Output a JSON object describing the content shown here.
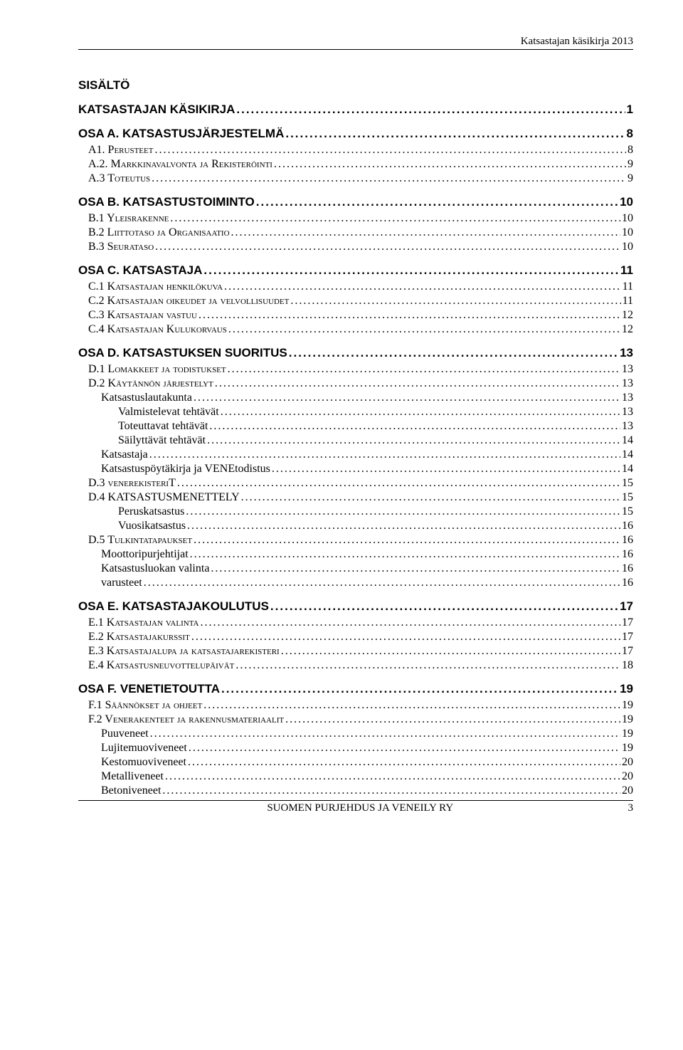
{
  "header": {
    "right_text": "Katsastajan käsikirja 2013"
  },
  "heading": "SISÄLTÖ",
  "toc": [
    {
      "level": "section",
      "label": "KATSASTAJAN KÄSIKIRJA",
      "page": "1"
    },
    {
      "level": "section",
      "label": "OSA A. KATSASTUSJÄRJESTELMÄ",
      "page": "8"
    },
    {
      "level": 1,
      "smallcaps": true,
      "label": "A1. Perusteet",
      "page": "8"
    },
    {
      "level": 1,
      "smallcaps": true,
      "label": "A.2. Markkinavalvonta ja Rekisteröinti",
      "page": "9"
    },
    {
      "level": 1,
      "smallcaps": true,
      "label": "A.3 Toteutus",
      "page": "9"
    },
    {
      "level": "section",
      "label": "OSA B. KATSASTUSTOIMINTO",
      "page": "10"
    },
    {
      "level": 1,
      "smallcaps": true,
      "label": "B.1 Yleisrakenne",
      "page": "10"
    },
    {
      "level": 1,
      "smallcaps": true,
      "label": "B.2 Liittotaso ja Organisaatio",
      "page": "10"
    },
    {
      "level": 1,
      "smallcaps": true,
      "label": "B.3 Seurataso",
      "page": "10"
    },
    {
      "level": "section",
      "label": "OSA C. KATSASTAJA",
      "page": "11"
    },
    {
      "level": 1,
      "smallcaps": true,
      "label": "C.1 Katsastajan henkilökuva",
      "page": "11"
    },
    {
      "level": 1,
      "smallcaps": true,
      "label": "C.2 Katsastajan oikeudet ja velvollisuudet",
      "page": "11"
    },
    {
      "level": 1,
      "smallcaps": true,
      "label": "C.3 Katsastajan vastuu",
      "page": "12"
    },
    {
      "level": 1,
      "smallcaps": true,
      "label": "C.4 Katsastajan Kulukorvaus",
      "page": "12"
    },
    {
      "level": "section",
      "label": "OSA D. KATSASTUKSEN SUORITUS",
      "page": "13"
    },
    {
      "level": 1,
      "smallcaps": true,
      "label": "D.1 Lomakkeet ja todistukset",
      "page": "13"
    },
    {
      "level": 1,
      "smallcaps": true,
      "label": "D.2 Käytännön järjestelyt",
      "page": "13"
    },
    {
      "level": 2,
      "label": "Katsastuslautakunta",
      "page": "13"
    },
    {
      "level": 3,
      "label": "Valmistelevat tehtävät",
      "page": "13"
    },
    {
      "level": 3,
      "label": "Toteuttavat tehtävät",
      "page": "13"
    },
    {
      "level": 3,
      "label": "Säilyttävät tehtävät",
      "page": "14"
    },
    {
      "level": 2,
      "label": "Katsastaja",
      "page": "14"
    },
    {
      "level": 2,
      "label": "Katsastuspöytäkirja ja VENEtodistus",
      "page": "14"
    },
    {
      "level": 1,
      "smallcaps": true,
      "label_html": "D.3 <span style='font-variant:small-caps'>venerekisteri</span>T",
      "label": "D.3 venerekisteriT",
      "page": "15"
    },
    {
      "level": 1,
      "label": "D.4 KATSASTUSMENETTELY",
      "page": "15"
    },
    {
      "level": 3,
      "label": "Peruskatsastus",
      "page": "15"
    },
    {
      "level": 3,
      "label": "Vuosikatsastus",
      "page": "16"
    },
    {
      "level": 1,
      "smallcaps": true,
      "label": "D.5 Tulkintatapaukset",
      "page": "16"
    },
    {
      "level": 2,
      "label": "Moottoripurjehtijat",
      "page": "16"
    },
    {
      "level": 2,
      "label": "Katsastusluokan valinta",
      "page": "16"
    },
    {
      "level": 2,
      "label": "varusteet",
      "page": "16"
    },
    {
      "level": "section",
      "label": "OSA E. KATSASTAJAKOULUTUS",
      "page": "17"
    },
    {
      "level": 1,
      "smallcaps": true,
      "label": "E.1 Katsastajan valinta",
      "page": "17"
    },
    {
      "level": 1,
      "smallcaps": true,
      "label": "E.2 Katsastajakurssit",
      "page": "17"
    },
    {
      "level": 1,
      "smallcaps": true,
      "label": "E.3 Katsastajalupa ja katsastajarekisteri",
      "page": "17"
    },
    {
      "level": 1,
      "smallcaps": true,
      "label": "E.4 Katsastusneuvottelupäivät",
      "page": "18"
    },
    {
      "level": "section",
      "label": "OSA F. VENETIETOUTTA",
      "page": "19"
    },
    {
      "level": 1,
      "smallcaps": true,
      "label": "F.1 Säännökset ja ohjeet",
      "page": "19"
    },
    {
      "level": 1,
      "smallcaps": true,
      "label": "F.2 Venerakenteet ja rakennusmateriaalit",
      "page": "19"
    },
    {
      "level": 2,
      "label": "Puuveneet",
      "page": "19"
    },
    {
      "level": 2,
      "label": "Lujitemuoviveneet",
      "page": "19"
    },
    {
      "level": 2,
      "label": "Kestomuoviveneet",
      "page": "20"
    },
    {
      "level": 2,
      "label": "Metalliveneet",
      "page": "20"
    },
    {
      "level": 2,
      "label": "Betoniveneet",
      "page": "20"
    }
  ],
  "footer": {
    "center": "SUOMEN PURJEHDUS JA VENEILY RY",
    "page_number": "3"
  }
}
